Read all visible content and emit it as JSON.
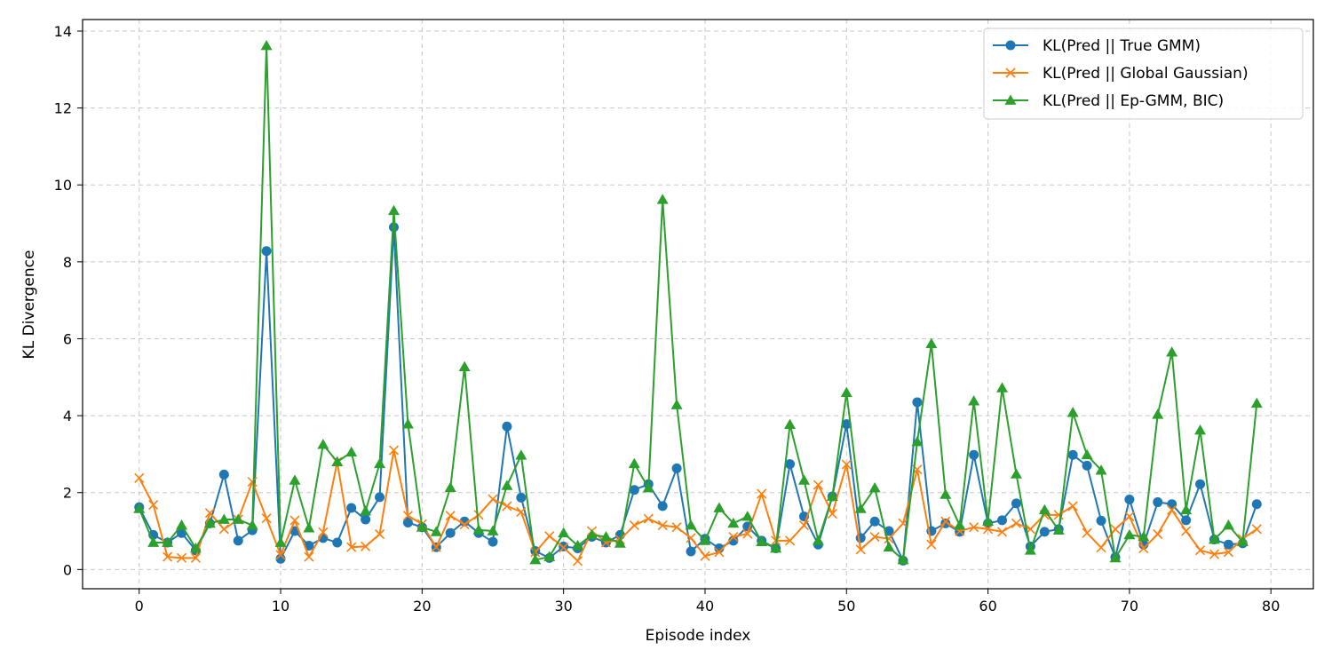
{
  "chart_data": {
    "type": "line",
    "title": "",
    "xlabel": "Episode index",
    "ylabel": "KL Divergence",
    "xlim": [
      -4,
      83
    ],
    "ylim": [
      -0.5,
      14.3
    ],
    "xticks": [
      0,
      10,
      20,
      30,
      40,
      50,
      60,
      70,
      80
    ],
    "yticks": [
      0,
      2,
      4,
      6,
      8,
      10,
      12,
      14
    ],
    "grid": true,
    "legend_position": "top-right",
    "x": [
      0,
      1,
      2,
      3,
      4,
      5,
      6,
      7,
      8,
      9,
      10,
      11,
      12,
      13,
      14,
      15,
      16,
      17,
      18,
      19,
      20,
      21,
      22,
      23,
      24,
      25,
      26,
      27,
      28,
      29,
      30,
      31,
      32,
      33,
      34,
      35,
      36,
      37,
      38,
      39,
      40,
      41,
      42,
      43,
      44,
      45,
      46,
      47,
      48,
      49,
      50,
      51,
      52,
      53,
      54,
      55,
      56,
      57,
      58,
      59,
      60,
      61,
      62,
      63,
      64,
      65,
      66,
      67,
      68,
      69,
      70,
      71,
      72,
      73,
      74,
      75,
      76,
      77,
      78,
      79
    ],
    "series": [
      {
        "name": "KL(Pred || True GMM)",
        "color": "#1f77b4",
        "marker": "circle",
        "values": [
          1.62,
          0.9,
          0.7,
          0.95,
          0.5,
          1.2,
          2.47,
          0.75,
          1.02,
          8.28,
          0.28,
          1.0,
          0.62,
          0.82,
          0.7,
          1.6,
          1.3,
          1.88,
          8.9,
          1.22,
          1.1,
          0.58,
          0.95,
          1.25,
          0.95,
          0.72,
          3.72,
          1.87,
          0.48,
          0.3,
          0.6,
          0.55,
          0.85,
          0.7,
          0.9,
          2.07,
          2.22,
          1.65,
          2.63,
          0.47,
          0.8,
          0.55,
          0.75,
          1.12,
          0.75,
          0.55,
          2.74,
          1.38,
          0.65,
          1.9,
          3.78,
          0.82,
          1.25,
          1.0,
          0.23,
          4.35,
          1.0,
          1.2,
          0.98,
          2.98,
          1.2,
          1.28,
          1.72,
          0.6,
          0.98,
          1.05,
          2.98,
          2.7,
          1.27,
          0.32,
          1.82,
          0.65,
          1.75,
          1.7,
          1.28,
          2.22,
          0.78,
          0.65,
          0.68,
          1.7
        ]
      },
      {
        "name": "KL(Pred || Global Gaussian)",
        "color": "#ff7f0e",
        "marker": "x",
        "values": [
          2.38,
          1.68,
          0.33,
          0.3,
          0.3,
          1.47,
          1.05,
          1.3,
          2.28,
          1.33,
          0.38,
          1.28,
          0.33,
          0.97,
          2.8,
          0.58,
          0.6,
          0.92,
          3.1,
          1.4,
          1.18,
          0.58,
          1.4,
          1.17,
          1.42,
          1.83,
          1.65,
          1.5,
          0.45,
          0.87,
          0.57,
          0.22,
          1.0,
          0.7,
          0.78,
          1.15,
          1.32,
          1.15,
          1.1,
          0.82,
          0.35,
          0.45,
          0.85,
          0.93,
          1.97,
          0.75,
          0.75,
          1.15,
          2.2,
          1.45,
          2.73,
          0.52,
          0.85,
          0.8,
          1.2,
          2.6,
          0.65,
          1.25,
          1.0,
          1.1,
          1.05,
          0.98,
          1.2,
          1.05,
          1.42,
          1.42,
          1.65,
          0.95,
          0.57,
          1.05,
          1.38,
          0.55,
          0.92,
          1.55,
          1.0,
          0.5,
          0.4,
          0.45,
          0.8,
          1.05
        ]
      },
      {
        "name": "KL(Pred || Ep-GMM, BIC)",
        "color": "#2ca02c",
        "marker": "triangle",
        "values": [
          1.58,
          0.7,
          0.7,
          1.15,
          0.55,
          1.2,
          1.3,
          1.3,
          1.15,
          13.62,
          0.7,
          2.32,
          1.08,
          3.25,
          2.8,
          3.05,
          1.52,
          2.75,
          9.33,
          3.78,
          1.1,
          0.98,
          2.13,
          5.27,
          1.03,
          1.0,
          2.18,
          2.97,
          0.25,
          0.33,
          0.95,
          0.62,
          0.9,
          0.85,
          0.68,
          2.75,
          2.12,
          9.62,
          4.28,
          1.15,
          0.75,
          1.6,
          1.2,
          1.38,
          0.72,
          0.55,
          3.77,
          2.32,
          0.75,
          1.9,
          4.6,
          1.58,
          2.12,
          0.58,
          0.25,
          3.32,
          5.87,
          1.95,
          1.15,
          4.38,
          1.25,
          4.72,
          2.48,
          0.5,
          1.55,
          1.02,
          4.08,
          2.98,
          2.58,
          0.3,
          0.9,
          0.85,
          4.03,
          5.65,
          1.55,
          3.62,
          0.78,
          1.15,
          0.72,
          4.32
        ]
      }
    ]
  }
}
